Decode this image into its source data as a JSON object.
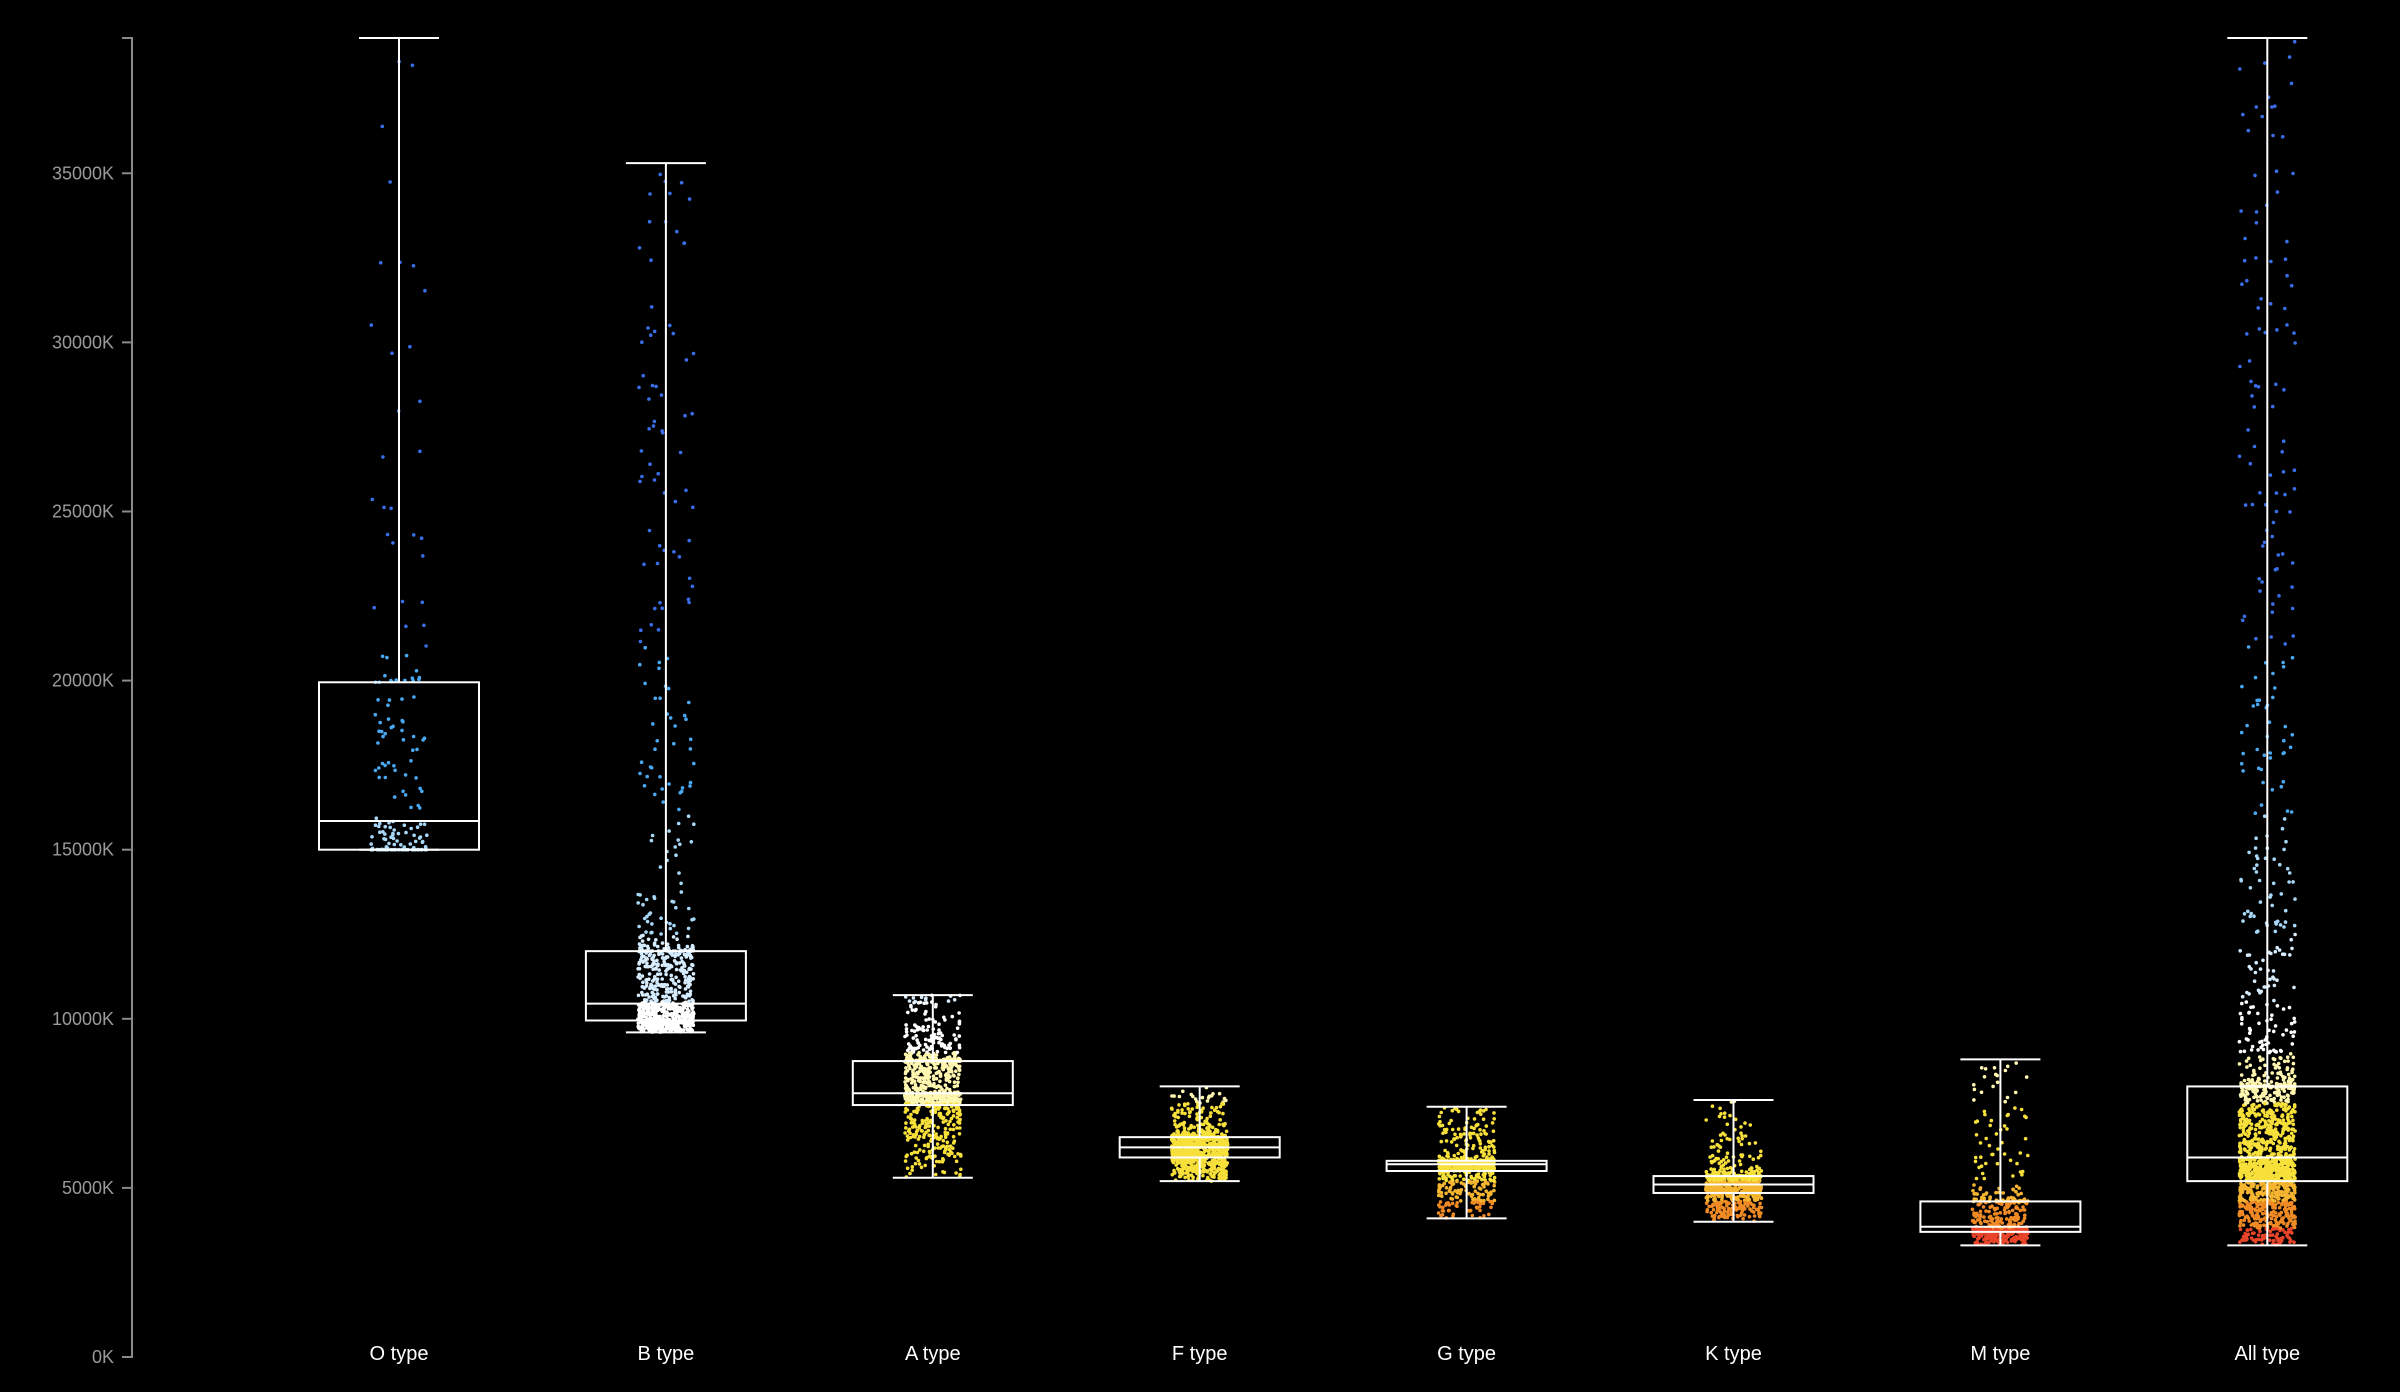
{
  "chart_data": {
    "type": "box",
    "title": "",
    "xlabel": "",
    "ylabel": "",
    "ylim": [
      0,
      39000
    ],
    "y_tick_values": [
      0,
      5000,
      10000,
      15000,
      20000,
      25000,
      30000,
      35000
    ],
    "y_tick_suffix": "K",
    "grid": false,
    "legend": "none",
    "overlay": "jittered points colored by temperature",
    "categories": [
      "O type",
      "B type",
      "A type",
      "F type",
      "G type",
      "K type",
      "M type",
      "All type"
    ],
    "boxes": [
      {
        "name": "O type",
        "min": 15000,
        "q1": 15000,
        "median": 15850,
        "q3": 19950,
        "max": 39000
      },
      {
        "name": "B type",
        "min": 9600,
        "q1": 9950,
        "median": 10450,
        "q3": 12000,
        "max": 35300
      },
      {
        "name": "A type",
        "min": 5300,
        "q1": 7450,
        "median": 7800,
        "q3": 8750,
        "max": 10700
      },
      {
        "name": "F type",
        "min": 5200,
        "q1": 5900,
        "median": 6200,
        "q3": 6500,
        "max": 8000
      },
      {
        "name": "G type",
        "min": 4100,
        "q1": 5500,
        "median": 5700,
        "q3": 5800,
        "max": 7400
      },
      {
        "name": "K type",
        "min": 4000,
        "q1": 4850,
        "median": 5100,
        "q3": 5350,
        "max": 7600
      },
      {
        "name": "M type",
        "min": 3300,
        "q1": 3700,
        "median": 3850,
        "q3": 4600,
        "max": 8800
      },
      {
        "name": "All type",
        "min": 3300,
        "q1": 5200,
        "median": 5900,
        "q3": 8000,
        "max": 39000
      }
    ],
    "point_colors": {
      "cool_red": "#e8452a",
      "orange": "#f08a24",
      "yellow": "#f7e03a",
      "white": "#ffffff",
      "light_blue": "#a8d8f8",
      "blue": "#4aa8f0",
      "deep_blue": "#3a6ee8"
    }
  }
}
